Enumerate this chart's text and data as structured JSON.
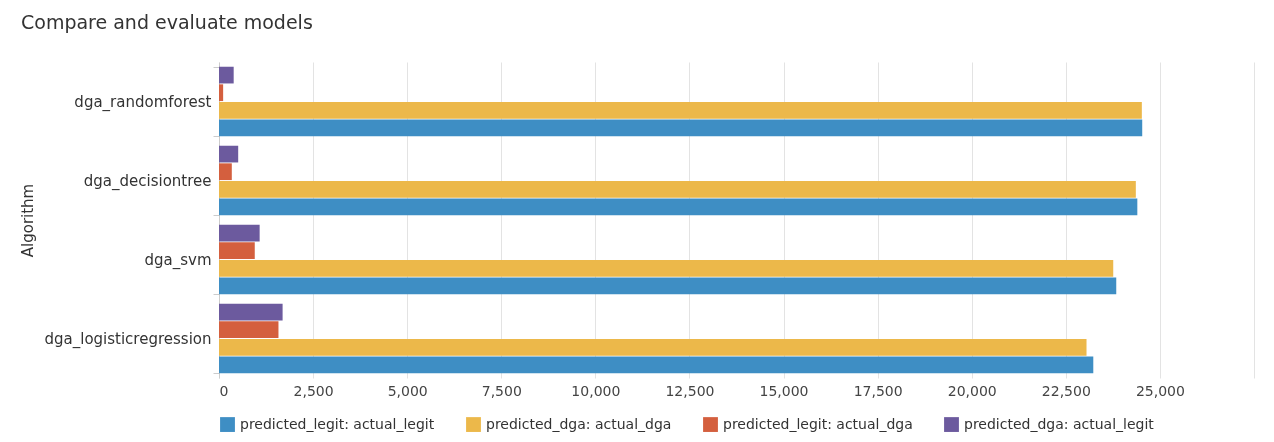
{
  "chart_data": {
    "type": "bar",
    "title": "Compare and evaluate models",
    "ylabel": "Algorithm",
    "orientation": "horizontal",
    "categories": [
      "dga_randomforest",
      "dga_decisiontree",
      "dga_svm",
      "dga_logisticregression"
    ],
    "series": [
      {
        "name": "predicted_legit: actual_legit",
        "color": "#3e8ec4",
        "values": [
          24530,
          24400,
          23840,
          23230
        ]
      },
      {
        "name": "predicted_dga: actual_dga",
        "color": "#ecb84a",
        "values": [
          24520,
          24360,
          23760,
          23050
        ]
      },
      {
        "name": "predicted_legit: actual_dga",
        "color": "#d45f3e",
        "values": [
          110,
          340,
          950,
          1580
        ]
      },
      {
        "name": "predicted_dga: actual_legit",
        "color": "#6c5a9e",
        "values": [
          390,
          510,
          1080,
          1690
        ]
      }
    ],
    "xlim": [
      0,
      27500
    ],
    "xticks": [
      0,
      {
        "value": 2500,
        "label": "2,500"
      },
      {
        "value": 5000,
        "label": "5,000"
      },
      {
        "value": 7500,
        "label": "7,500"
      },
      {
        "value": 10000,
        "label": "10,000"
      },
      {
        "value": 12500,
        "label": "12,500"
      },
      {
        "value": 15000,
        "label": "15,000"
      },
      {
        "value": 17500,
        "label": "17,500"
      },
      {
        "value": 20000,
        "label": "20,000"
      },
      {
        "value": 22500,
        "label": "22,500"
      },
      {
        "value": 25000,
        "label": "25,000"
      },
      {
        "value": 27500,
        "label": null
      }
    ],
    "grid": "x",
    "legend": "bottom"
  }
}
